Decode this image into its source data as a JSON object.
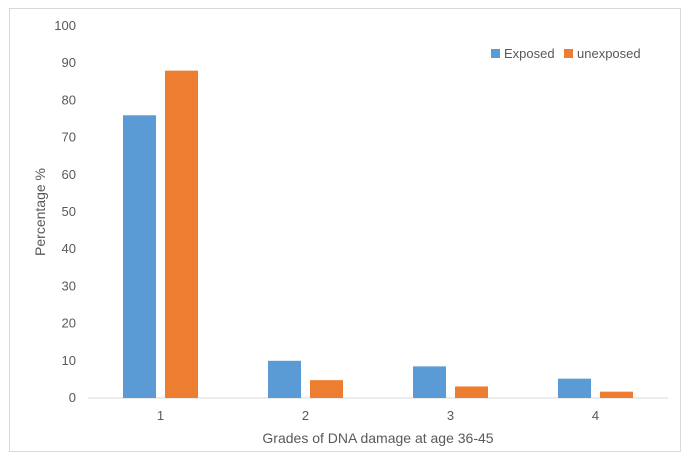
{
  "chart_data": {
    "type": "bar",
    "title": "",
    "xlabel": "Grades of DNA damage at age 36-45",
    "ylabel": "Percentage %",
    "categories": [
      "1",
      "2",
      "3",
      "4"
    ],
    "series": [
      {
        "name": "Exposed",
        "values": [
          76,
          10,
          8.5,
          5.2
        ],
        "color": "#5B9BD5"
      },
      {
        "name": "unexposed",
        "values": [
          88,
          4.8,
          3.1,
          1.7
        ],
        "color": "#ED7D31"
      }
    ],
    "ylim": [
      0,
      100
    ],
    "yticks": [
      0,
      10,
      20,
      30,
      40,
      50,
      60,
      70,
      80,
      90,
      100
    ],
    "grid": false,
    "legend_position": "top-right"
  }
}
